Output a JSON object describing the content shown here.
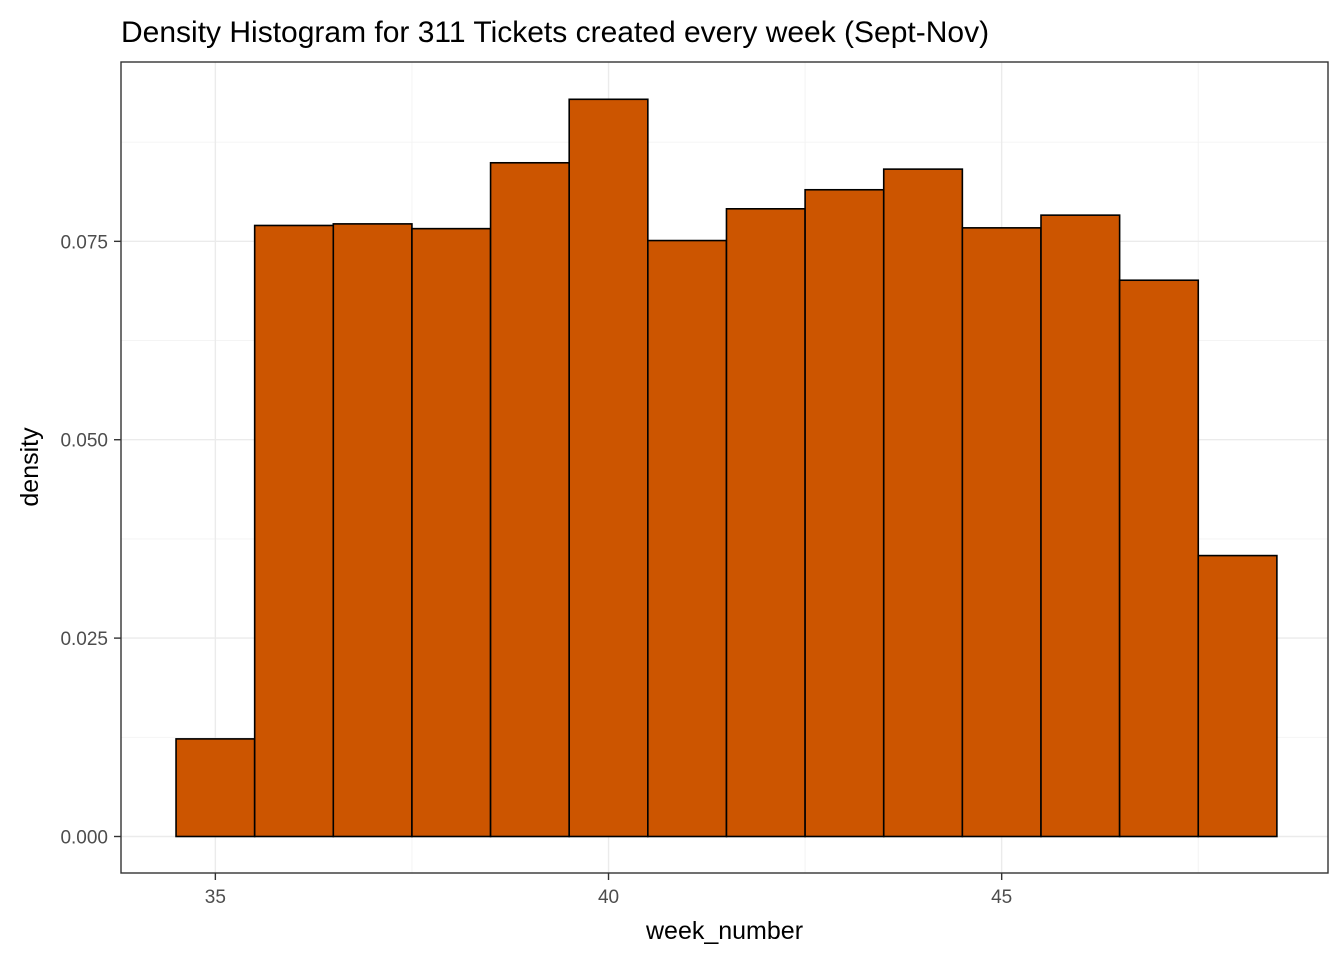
{
  "chart_data": {
    "type": "bar",
    "subtype": "histogram",
    "title": "Density Histogram for 311 Tickets created every week (Sept-Nov)",
    "xlabel": "week_number",
    "ylabel": "density",
    "bin_width": 1,
    "bins": [
      {
        "x": 35,
        "density": 0.0123
      },
      {
        "x": 36,
        "density": 0.077
      },
      {
        "x": 37,
        "density": 0.0772
      },
      {
        "x": 38,
        "density": 0.0766
      },
      {
        "x": 39,
        "density": 0.0849
      },
      {
        "x": 40,
        "density": 0.0929
      },
      {
        "x": 41,
        "density": 0.0751
      },
      {
        "x": 42,
        "density": 0.0791
      },
      {
        "x": 43,
        "density": 0.0815
      },
      {
        "x": 44,
        "density": 0.0841
      },
      {
        "x": 45,
        "density": 0.0767
      },
      {
        "x": 46,
        "density": 0.0783
      },
      {
        "x": 47,
        "density": 0.0701
      },
      {
        "x": 48,
        "density": 0.0354
      }
    ],
    "xlim": [
      33.8,
      49.15
    ],
    "ylim": [
      -0.0046,
      0.0976
    ],
    "x_ticks": [
      35,
      40,
      45
    ],
    "x_tick_labels": [
      "35",
      "40",
      "45"
    ],
    "y_ticks": [
      0,
      0.025,
      0.05,
      0.075
    ],
    "y_tick_labels": [
      "0.000",
      "0.025",
      "0.050",
      "0.075"
    ],
    "grid": true,
    "legend": "none",
    "colors": {
      "bar_fill": "#CC5500",
      "bar_outline": "#000000",
      "panel_border": "#333333",
      "grid": "#EBEBEB"
    }
  }
}
